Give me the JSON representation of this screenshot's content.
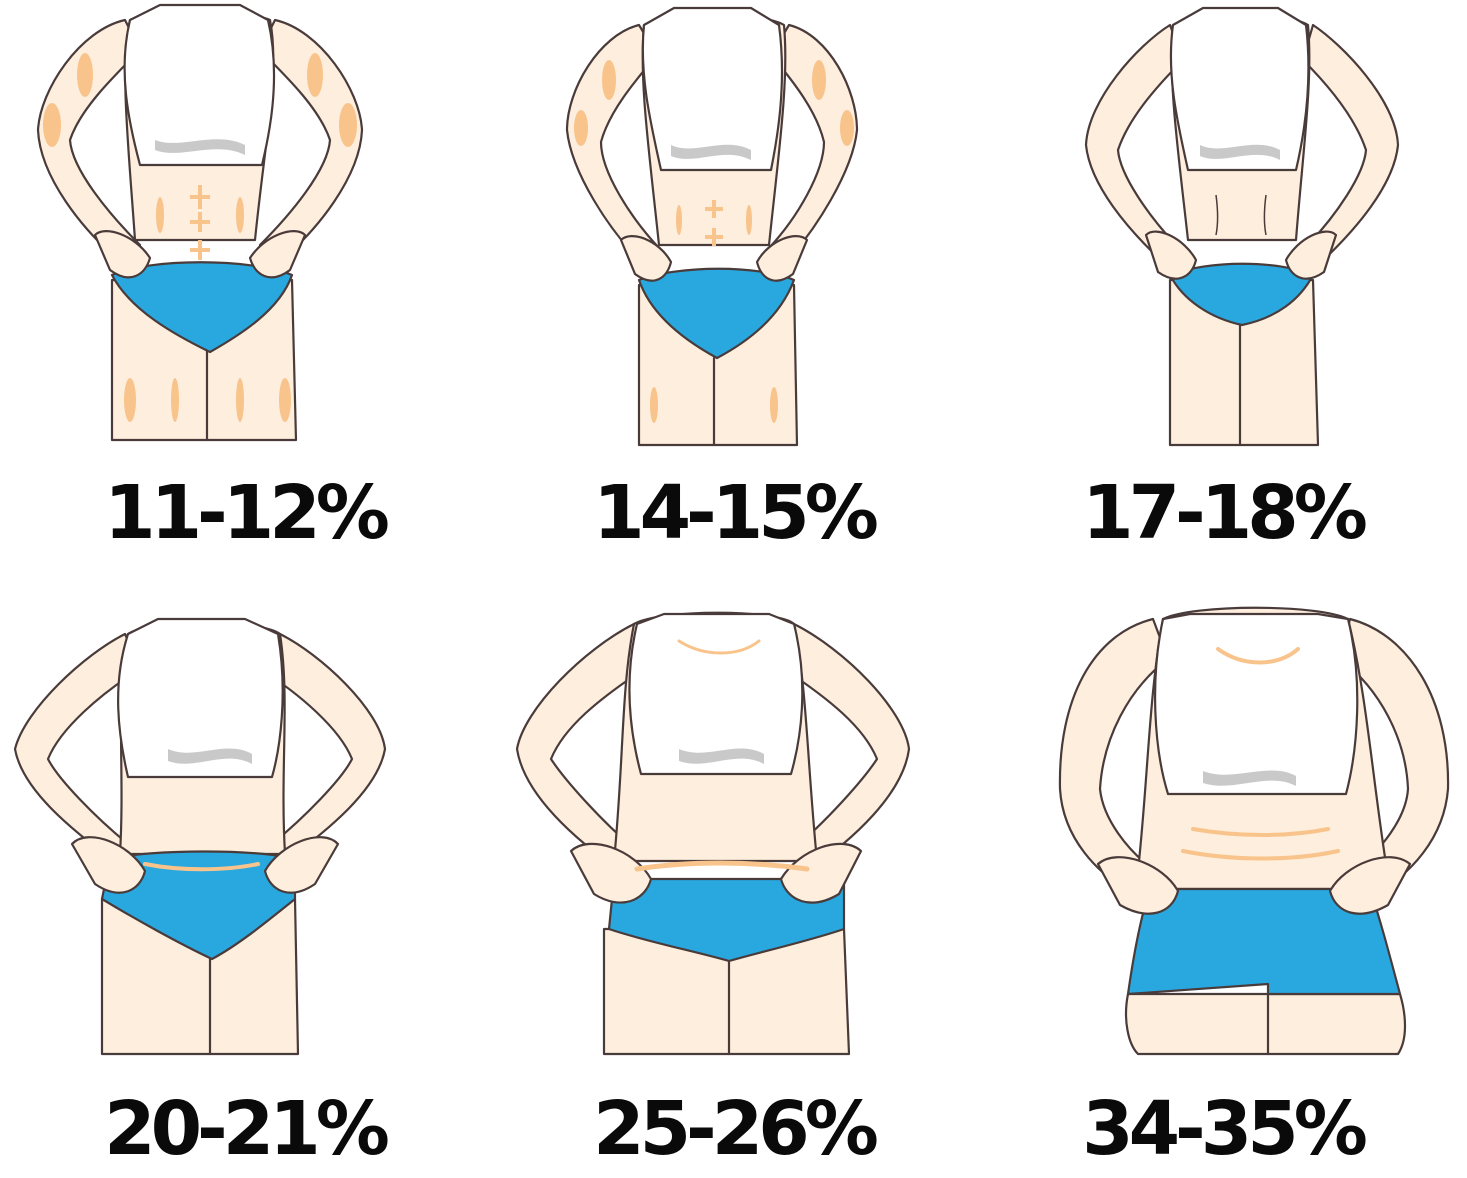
{
  "colors": {
    "skin": "#fdeedd",
    "outline": "#4a3b3b",
    "muscle": "#f9c48b",
    "top": "#ffffff",
    "shadow": "#c9c9c9",
    "briefs": "#29a8e0"
  },
  "figures": [
    {
      "label": "11-12%"
    },
    {
      "label": "14-15%"
    },
    {
      "label": "17-18%"
    },
    {
      "label": "20-21%"
    },
    {
      "label": "25-26%"
    },
    {
      "label": "34-35%"
    }
  ]
}
